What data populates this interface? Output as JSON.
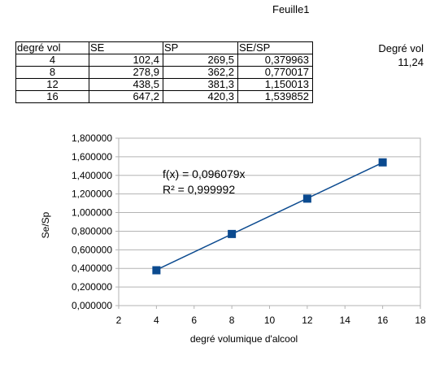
{
  "sheet": {
    "title": "Feuille1"
  },
  "table": {
    "headers": [
      "degré vol",
      "SE",
      "SP",
      "SE/SP"
    ],
    "rows": [
      [
        "4",
        "102,4",
        "269,5",
        "0,379963"
      ],
      [
        "8",
        "278,9",
        "362,2",
        "0,770017"
      ],
      [
        "12",
        "438,5",
        "381,3",
        "1,150013"
      ],
      [
        "16",
        "647,2",
        "420,3",
        "1,539852"
      ]
    ]
  },
  "side": {
    "label": "Degré vol",
    "value": "11,24"
  },
  "chart_data": {
    "type": "scatter",
    "x": [
      4,
      8,
      12,
      16
    ],
    "y": [
      0.379963,
      0.770017,
      1.150013,
      1.539852
    ],
    "xlabel": "degré volumique d'alcool",
    "ylabel": "Se/Sp",
    "xlim": [
      2,
      18
    ],
    "ylim": [
      0,
      1.8
    ],
    "xticks": [
      2,
      4,
      6,
      8,
      10,
      12,
      14,
      16,
      18
    ],
    "yticks": [
      0,
      0.2,
      0.4,
      0.6,
      0.8,
      1.0,
      1.2,
      1.4,
      1.6,
      1.8
    ],
    "ytick_labels": [
      "0,000000",
      "0,200000",
      "0,400000",
      "0,600000",
      "0,800000",
      "1,000000",
      "1,200000",
      "1,400000",
      "1,600000",
      "1,800000"
    ],
    "trendline": {
      "type": "linear",
      "slope": 0.096079,
      "intercept": 0
    },
    "equation": "f(x) = 0,096079x",
    "r_squared": "R² = 0,999992",
    "grid": true,
    "marker": "square",
    "colors": {
      "series": "#0b4a8f",
      "grid": "#b3b3b3",
      "axis": "#b3b3b3"
    }
  }
}
